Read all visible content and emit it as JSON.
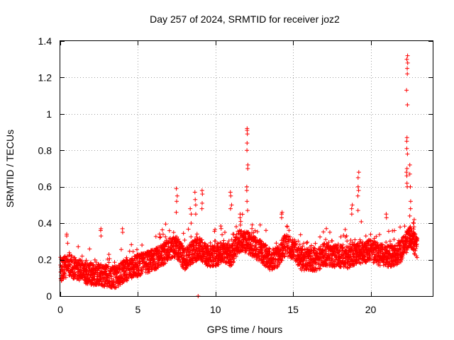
{
  "chart_data": {
    "type": "scatter",
    "title": "Day 257 of 2024, SRMTID for receiver joz2",
    "xlabel": "GPS time / hours",
    "ylabel": "SRMTID / TECUs",
    "xlim": [
      0,
      24
    ],
    "ylim": [
      0,
      1.4
    ],
    "grid": true,
    "marker": "+",
    "color": "#ff0000",
    "x_ticks": [
      {
        "value": 0,
        "label": "0"
      },
      {
        "value": 5,
        "label": "5"
      },
      {
        "value": 10,
        "label": "10"
      },
      {
        "value": 15,
        "label": "15"
      },
      {
        "value": 20,
        "label": "20"
      }
    ],
    "y_ticks": [
      {
        "value": 0,
        "label": "0"
      },
      {
        "value": 0.2,
        "label": "0.2"
      },
      {
        "value": 0.4,
        "label": "0.4"
      },
      {
        "value": 0.6,
        "label": "0.6"
      },
      {
        "value": 0.8,
        "label": "0.8"
      },
      {
        "value": 1.0,
        "label": "1"
      },
      {
        "value": 1.2,
        "label": "1.2"
      },
      {
        "value": 1.4,
        "label": "1.4"
      }
    ],
    "trend": [
      [
        0.0,
        0.14
      ],
      [
        0.5,
        0.17
      ],
      [
        1.0,
        0.15
      ],
      [
        1.5,
        0.13
      ],
      [
        2.0,
        0.12
      ],
      [
        2.5,
        0.12
      ],
      [
        3.0,
        0.11
      ],
      [
        3.5,
        0.1
      ],
      [
        4.0,
        0.13
      ],
      [
        4.5,
        0.15
      ],
      [
        5.0,
        0.17
      ],
      [
        5.5,
        0.18
      ],
      [
        6.0,
        0.2
      ],
      [
        6.5,
        0.22
      ],
      [
        7.0,
        0.26
      ],
      [
        7.5,
        0.27
      ],
      [
        8.0,
        0.2
      ],
      [
        8.5,
        0.24
      ],
      [
        9.0,
        0.26
      ],
      [
        9.5,
        0.22
      ],
      [
        10.0,
        0.22
      ],
      [
        10.5,
        0.25
      ],
      [
        11.0,
        0.22
      ],
      [
        11.5,
        0.3
      ],
      [
        12.0,
        0.3
      ],
      [
        12.5,
        0.27
      ],
      [
        13.0,
        0.24
      ],
      [
        13.5,
        0.2
      ],
      [
        14.0,
        0.22
      ],
      [
        14.5,
        0.28
      ],
      [
        15.0,
        0.26
      ],
      [
        15.5,
        0.2
      ],
      [
        16.0,
        0.2
      ],
      [
        16.5,
        0.19
      ],
      [
        17.0,
        0.23
      ],
      [
        17.5,
        0.22
      ],
      [
        18.0,
        0.22
      ],
      [
        18.5,
        0.21
      ],
      [
        19.0,
        0.23
      ],
      [
        19.5,
        0.24
      ],
      [
        20.0,
        0.25
      ],
      [
        20.5,
        0.23
      ],
      [
        21.0,
        0.22
      ],
      [
        21.5,
        0.22
      ],
      [
        22.0,
        0.25
      ],
      [
        22.5,
        0.33
      ],
      [
        23.0,
        0.27
      ]
    ],
    "spikes": [
      {
        "x": 0.45,
        "values": [
          0.33,
          0.34,
          0.29
        ]
      },
      {
        "x": 2.6,
        "values": [
          0.37,
          0.36,
          0.33
        ]
      },
      {
        "x": 4.0,
        "values": [
          0.37,
          0.35
        ]
      },
      {
        "x": 7.5,
        "values": [
          0.59,
          0.55,
          0.52,
          0.46
        ]
      },
      {
        "x": 8.4,
        "values": [
          0.48,
          0.45,
          0.4
        ]
      },
      {
        "x": 8.7,
        "values": [
          0.57,
          0.53,
          0.5,
          0.45
        ]
      },
      {
        "x": 8.85,
        "values": [
          0.0
        ]
      },
      {
        "x": 9.15,
        "values": [
          0.58,
          0.56,
          0.51,
          0.48
        ]
      },
      {
        "x": 11.0,
        "values": [
          0.57,
          0.55,
          0.5,
          0.48
        ]
      },
      {
        "x": 11.6,
        "values": [
          0.45,
          0.43,
          0.41,
          0.39
        ]
      },
      {
        "x": 12.05,
        "values": [
          0.92,
          0.91,
          0.89,
          0.84,
          0.8,
          0.72,
          0.7,
          0.6,
          0.58,
          0.52,
          0.47
        ]
      },
      {
        "x": 14.3,
        "values": [
          0.46,
          0.45,
          0.43
        ]
      },
      {
        "x": 19.2,
        "values": [
          0.68,
          0.65,
          0.6,
          0.58,
          0.55,
          0.47
        ]
      },
      {
        "x": 18.8,
        "values": [
          0.5,
          0.48,
          0.45
        ]
      },
      {
        "x": 21.0,
        "values": [
          0.45,
          0.43
        ]
      },
      {
        "x": 22.35,
        "values": [
          1.32,
          1.3,
          1.28,
          1.25,
          1.22,
          1.13,
          1.05,
          0.87,
          0.85,
          0.81,
          0.78,
          0.7,
          0.68,
          0.66,
          0.62,
          0.6
        ]
      },
      {
        "x": 22.55,
        "values": [
          0.72,
          0.67,
          0.6,
          0.52,
          0.48,
          0.44
        ]
      },
      {
        "x": 22.8,
        "values": [
          0.42,
          0.4,
          0.38,
          0.35
        ]
      }
    ],
    "sample_interval_hours": 0.02,
    "scatter_spread": 0.06
  }
}
